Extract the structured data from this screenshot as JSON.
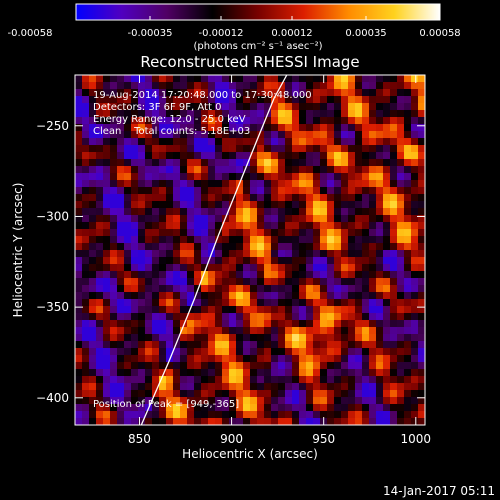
{
  "colorbar": {
    "tick_labels": [
      "-0.00058",
      "-0.00035",
      "-0.00012",
      "0.00012",
      "0.00035",
      "0.00058"
    ],
    "unit_label": "(photons cm⁻² s⁻¹ asec⁻²)",
    "colors": [
      "#0000ff",
      "#5000c0",
      "#500064",
      "#000000",
      "#780000",
      "#dc1e00",
      "#ff8c00",
      "#ffd21e",
      "#ffffff"
    ]
  },
  "plot": {
    "title": "Reconstructed RHESSI Image",
    "info_lines": [
      "19-Aug-2014 17:20:48.000 to 17:30:48.000",
      "Detectors: 3F 6F 9F, Att 0",
      "Energy Range: 12.0 - 25.0 keV",
      "Clean    Total counts: 5.18E+03"
    ],
    "peak_text": "Position of Peak = [949,-365]",
    "xlabel": "Heliocentric X (arcsec)",
    "ylabel": "Heliocentric Y (arcsec)"
  },
  "timestamp": "14-Jan-2017 05:11",
  "chart_data": {
    "type": "heatmap",
    "title": "Reconstructed RHESSI Image",
    "xlabel": "Heliocentric X (arcsec)",
    "ylabel": "Heliocentric Y (arcsec)",
    "xlim": [
      815,
      1005
    ],
    "ylim": [
      -415,
      -222
    ],
    "xticks": [
      850,
      900,
      950,
      1000
    ],
    "yticks": [
      -250,
      -300,
      -350,
      -400
    ],
    "colorbar_range": [
      -0.00058,
      0.00058
    ],
    "peak": [
      949,
      -365
    ],
    "limb_curve": {
      "x": [
        851,
        866,
        880,
        893,
        905,
        915,
        923,
        930
      ],
      "y": [
        -415,
        -380,
        -345,
        -310,
        -280,
        -255,
        -235,
        -222
      ]
    }
  }
}
